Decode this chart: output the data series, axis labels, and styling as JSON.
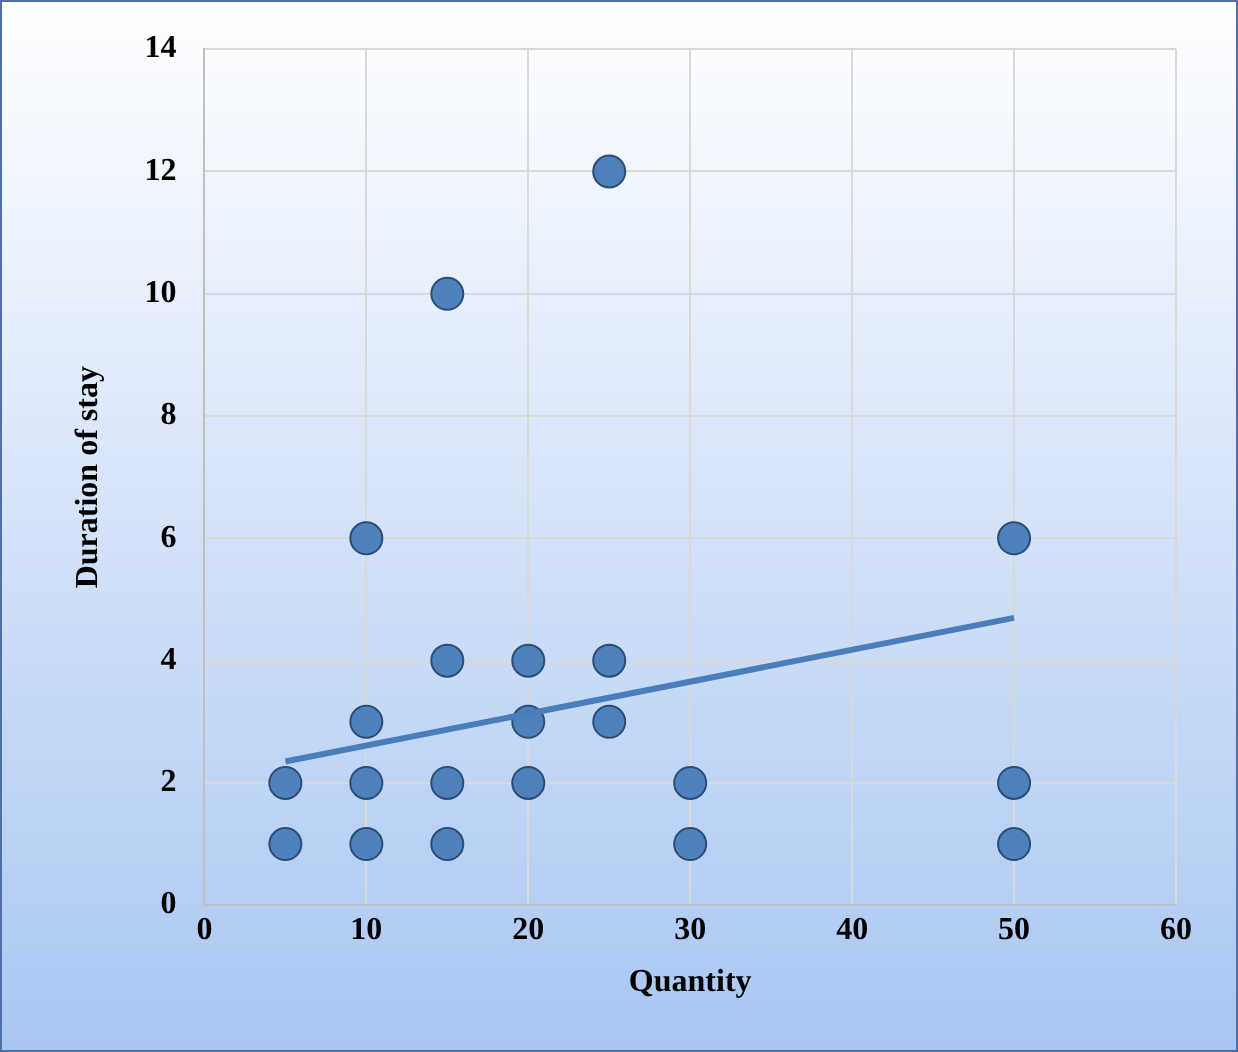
{
  "chart_data": {
    "type": "scatter",
    "xlabel": "Quantity",
    "ylabel": "Duration of stay",
    "xlim": [
      0,
      60
    ],
    "xticks": [
      0,
      10,
      20,
      30,
      40,
      50,
      60
    ],
    "ylim": [
      0,
      14
    ],
    "yticks": [
      0,
      2,
      4,
      6,
      8,
      10,
      12,
      14
    ],
    "grid": true,
    "legend": false,
    "series": [
      {
        "marker": "circle",
        "color": "#4f81bd",
        "x": [
          5,
          5,
          10,
          10,
          10,
          10,
          15,
          15,
          15,
          15,
          20,
          20,
          20,
          25,
          25,
          25,
          30,
          30,
          50,
          50,
          50
        ],
        "values": [
          1,
          2,
          1,
          2,
          3,
          6,
          1,
          2,
          4,
          10,
          2,
          3,
          4,
          3,
          4,
          12,
          1,
          2,
          1,
          2,
          6
        ]
      },
      {
        "type": "line",
        "color": "#4a7ebb",
        "x": [
          5,
          50
        ],
        "values": [
          2.35,
          4.7
        ]
      }
    ]
  }
}
